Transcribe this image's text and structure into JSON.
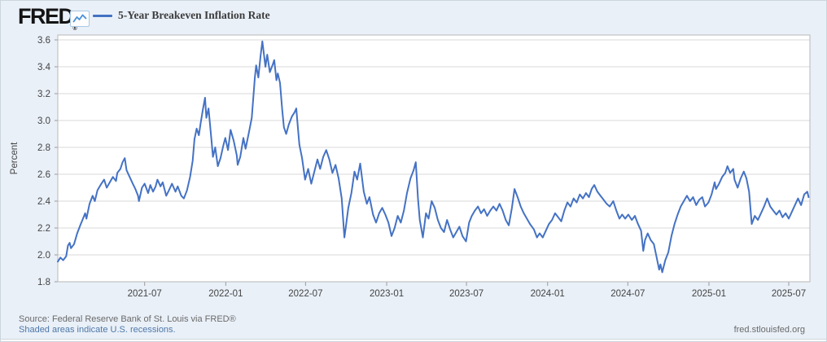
{
  "header": {
    "logo_text": "FRED",
    "registered_mark": "®",
    "logo_icon": "line-chart-icon",
    "legend": {
      "series_label": "5-Year Breakeven Inflation Rate",
      "line_color": "#4472c4"
    }
  },
  "footer": {
    "source_line": "Source: Federal Reserve Bank of St. Louis via FRED®",
    "recessions_note": "Shaded areas indicate U.S. recessions.",
    "site_link": "fred.stlouisfed.org"
  },
  "colors": {
    "figure_background": "#e9f0f8",
    "plot_background": "#ffffff",
    "gridline": "#d8d8d8",
    "plot_border": "#b9b9b9",
    "tick_mark": "#9a9a9a",
    "tick_text": "#434343",
    "series_line": "#4472c4",
    "link_blue": "#4e77a8"
  },
  "chart_data": {
    "type": "line",
    "title": "5-Year Breakeven Inflation Rate",
    "xlabel": "",
    "ylabel": "Percent",
    "ylim": [
      1.8,
      3.6
    ],
    "y_ticks": [
      1.8,
      2.0,
      2.2,
      2.4,
      2.6,
      2.8,
      3.0,
      3.2,
      3.4,
      3.6
    ],
    "x_ticks": [
      "2021-07",
      "2022-01",
      "2022-07",
      "2023-01",
      "2023-07",
      "2024-01",
      "2024-07",
      "2025-01",
      "2025-07"
    ],
    "x_range": [
      "2020-12-16",
      "2025-08-18"
    ],
    "grid": "horizontal-only",
    "legend_position": "top-left-header",
    "series": [
      {
        "name": "5-Year Breakeven Inflation Rate",
        "units": "Percent",
        "points": [
          [
            "2020-12-16",
            1.95
          ],
          [
            "2020-12-22",
            1.98
          ],
          [
            "2020-12-28",
            1.96
          ],
          [
            "2021-01-04",
            1.99
          ],
          [
            "2021-01-08",
            2.07
          ],
          [
            "2021-01-12",
            2.09
          ],
          [
            "2021-01-15",
            2.05
          ],
          [
            "2021-01-22",
            2.08
          ],
          [
            "2021-01-29",
            2.16
          ],
          [
            "2021-02-05",
            2.22
          ],
          [
            "2021-02-10",
            2.26
          ],
          [
            "2021-02-16",
            2.31
          ],
          [
            "2021-02-19",
            2.27
          ],
          [
            "2021-02-26",
            2.38
          ],
          [
            "2021-03-05",
            2.44
          ],
          [
            "2021-03-10",
            2.4
          ],
          [
            "2021-03-16",
            2.48
          ],
          [
            "2021-03-23",
            2.52
          ],
          [
            "2021-03-31",
            2.56
          ],
          [
            "2021-04-06",
            2.5
          ],
          [
            "2021-04-13",
            2.54
          ],
          [
            "2021-04-20",
            2.58
          ],
          [
            "2021-04-27",
            2.55
          ],
          [
            "2021-04-30",
            2.61
          ],
          [
            "2021-05-07",
            2.64
          ],
          [
            "2021-05-12",
            2.69
          ],
          [
            "2021-05-17",
            2.72
          ],
          [
            "2021-05-21",
            2.63
          ],
          [
            "2021-05-28",
            2.58
          ],
          [
            "2021-06-04",
            2.53
          ],
          [
            "2021-06-10",
            2.49
          ],
          [
            "2021-06-16",
            2.44
          ],
          [
            "2021-06-18",
            2.4
          ],
          [
            "2021-06-25",
            2.5
          ],
          [
            "2021-07-01",
            2.53
          ],
          [
            "2021-07-09",
            2.46
          ],
          [
            "2021-07-14",
            2.52
          ],
          [
            "2021-07-20",
            2.47
          ],
          [
            "2021-07-26",
            2.51
          ],
          [
            "2021-07-30",
            2.56
          ],
          [
            "2021-08-06",
            2.51
          ],
          [
            "2021-08-11",
            2.54
          ],
          [
            "2021-08-19",
            2.44
          ],
          [
            "2021-08-25",
            2.48
          ],
          [
            "2021-09-01",
            2.53
          ],
          [
            "2021-09-09",
            2.47
          ],
          [
            "2021-09-14",
            2.51
          ],
          [
            "2021-09-22",
            2.44
          ],
          [
            "2021-09-28",
            2.42
          ],
          [
            "2021-10-05",
            2.48
          ],
          [
            "2021-10-12",
            2.58
          ],
          [
            "2021-10-18",
            2.7
          ],
          [
            "2021-10-22",
            2.86
          ],
          [
            "2021-10-27",
            2.94
          ],
          [
            "2021-11-01",
            2.89
          ],
          [
            "2021-11-05",
            2.98
          ],
          [
            "2021-11-10",
            3.08
          ],
          [
            "2021-11-15",
            3.17
          ],
          [
            "2021-11-18",
            3.02
          ],
          [
            "2021-11-23",
            3.09
          ],
          [
            "2021-11-30",
            2.84
          ],
          [
            "2021-12-03",
            2.73
          ],
          [
            "2021-12-08",
            2.8
          ],
          [
            "2021-12-14",
            2.66
          ],
          [
            "2021-12-20",
            2.72
          ],
          [
            "2021-12-27",
            2.82
          ],
          [
            "2021-12-31",
            2.87
          ],
          [
            "2022-01-06",
            2.78
          ],
          [
            "2022-01-12",
            2.93
          ],
          [
            "2022-01-19",
            2.85
          ],
          [
            "2022-01-26",
            2.74
          ],
          [
            "2022-01-28",
            2.67
          ],
          [
            "2022-02-03",
            2.73
          ],
          [
            "2022-02-10",
            2.87
          ],
          [
            "2022-02-15",
            2.79
          ],
          [
            "2022-02-23",
            2.92
          ],
          [
            "2022-03-01",
            3.02
          ],
          [
            "2022-03-08",
            3.32
          ],
          [
            "2022-03-11",
            3.41
          ],
          [
            "2022-03-16",
            3.32
          ],
          [
            "2022-03-21",
            3.48
          ],
          [
            "2022-03-25",
            3.59
          ],
          [
            "2022-03-29",
            3.48
          ],
          [
            "2022-04-01",
            3.4
          ],
          [
            "2022-04-05",
            3.49
          ],
          [
            "2022-04-11",
            3.36
          ],
          [
            "2022-04-18",
            3.42
          ],
          [
            "2022-04-21",
            3.45
          ],
          [
            "2022-04-26",
            3.3
          ],
          [
            "2022-04-29",
            3.35
          ],
          [
            "2022-05-04",
            3.28
          ],
          [
            "2022-05-09",
            3.08
          ],
          [
            "2022-05-13",
            2.95
          ],
          [
            "2022-05-18",
            2.9
          ],
          [
            "2022-05-24",
            2.97
          ],
          [
            "2022-05-31",
            3.03
          ],
          [
            "2022-06-06",
            3.06
          ],
          [
            "2022-06-10",
            3.09
          ],
          [
            "2022-06-14",
            2.93
          ],
          [
            "2022-06-17",
            2.82
          ],
          [
            "2022-06-23",
            2.72
          ],
          [
            "2022-06-30",
            2.56
          ],
          [
            "2022-07-07",
            2.64
          ],
          [
            "2022-07-14",
            2.53
          ],
          [
            "2022-07-21",
            2.62
          ],
          [
            "2022-07-28",
            2.71
          ],
          [
            "2022-08-03",
            2.64
          ],
          [
            "2022-08-10",
            2.73
          ],
          [
            "2022-08-17",
            2.78
          ],
          [
            "2022-08-24",
            2.71
          ],
          [
            "2022-08-31",
            2.61
          ],
          [
            "2022-09-07",
            2.67
          ],
          [
            "2022-09-14",
            2.57
          ],
          [
            "2022-09-21",
            2.42
          ],
          [
            "2022-09-27",
            2.13
          ],
          [
            "2022-09-30",
            2.2
          ],
          [
            "2022-10-06",
            2.35
          ],
          [
            "2022-10-13",
            2.46
          ],
          [
            "2022-10-20",
            2.62
          ],
          [
            "2022-10-26",
            2.56
          ],
          [
            "2022-11-02",
            2.68
          ],
          [
            "2022-11-10",
            2.47
          ],
          [
            "2022-11-17",
            2.38
          ],
          [
            "2022-11-23",
            2.43
          ],
          [
            "2022-12-01",
            2.3
          ],
          [
            "2022-12-08",
            2.24
          ],
          [
            "2022-12-15",
            2.31
          ],
          [
            "2022-12-22",
            2.35
          ],
          [
            "2022-12-29",
            2.3
          ],
          [
            "2023-01-05",
            2.24
          ],
          [
            "2023-01-12",
            2.14
          ],
          [
            "2023-01-19",
            2.2
          ],
          [
            "2023-01-26",
            2.29
          ],
          [
            "2023-02-02",
            2.24
          ],
          [
            "2023-02-09",
            2.33
          ],
          [
            "2023-02-16",
            2.46
          ],
          [
            "2023-02-24",
            2.57
          ],
          [
            "2023-03-03",
            2.63
          ],
          [
            "2023-03-08",
            2.69
          ],
          [
            "2023-03-13",
            2.42
          ],
          [
            "2023-03-17",
            2.26
          ],
          [
            "2023-03-24",
            2.13
          ],
          [
            "2023-03-31",
            2.31
          ],
          [
            "2023-04-06",
            2.27
          ],
          [
            "2023-04-13",
            2.4
          ],
          [
            "2023-04-20",
            2.35
          ],
          [
            "2023-04-27",
            2.26
          ],
          [
            "2023-05-04",
            2.2
          ],
          [
            "2023-05-11",
            2.17
          ],
          [
            "2023-05-18",
            2.26
          ],
          [
            "2023-05-25",
            2.19
          ],
          [
            "2023-06-01",
            2.13
          ],
          [
            "2023-06-08",
            2.17
          ],
          [
            "2023-06-15",
            2.21
          ],
          [
            "2023-06-22",
            2.14
          ],
          [
            "2023-06-30",
            2.1
          ],
          [
            "2023-07-07",
            2.24
          ],
          [
            "2023-07-13",
            2.29
          ],
          [
            "2023-07-20",
            2.33
          ],
          [
            "2023-07-27",
            2.36
          ],
          [
            "2023-08-03",
            2.31
          ],
          [
            "2023-08-10",
            2.34
          ],
          [
            "2023-08-17",
            2.29
          ],
          [
            "2023-08-24",
            2.33
          ],
          [
            "2023-08-31",
            2.36
          ],
          [
            "2023-09-07",
            2.33
          ],
          [
            "2023-09-14",
            2.38
          ],
          [
            "2023-09-21",
            2.33
          ],
          [
            "2023-09-28",
            2.26
          ],
          [
            "2023-10-05",
            2.22
          ],
          [
            "2023-10-12",
            2.35
          ],
          [
            "2023-10-18",
            2.49
          ],
          [
            "2023-10-25",
            2.43
          ],
          [
            "2023-11-01",
            2.36
          ],
          [
            "2023-11-08",
            2.31
          ],
          [
            "2023-11-15",
            2.27
          ],
          [
            "2023-11-22",
            2.23
          ],
          [
            "2023-12-01",
            2.19
          ],
          [
            "2023-12-08",
            2.13
          ],
          [
            "2023-12-14",
            2.16
          ],
          [
            "2023-12-21",
            2.13
          ],
          [
            "2023-12-28",
            2.18
          ],
          [
            "2024-01-04",
            2.23
          ],
          [
            "2024-01-11",
            2.26
          ],
          [
            "2024-01-18",
            2.31
          ],
          [
            "2024-01-25",
            2.28
          ],
          [
            "2024-02-01",
            2.25
          ],
          [
            "2024-02-08",
            2.33
          ],
          [
            "2024-02-15",
            2.39
          ],
          [
            "2024-02-22",
            2.36
          ],
          [
            "2024-02-29",
            2.42
          ],
          [
            "2024-03-07",
            2.39
          ],
          [
            "2024-03-14",
            2.45
          ],
          [
            "2024-03-21",
            2.42
          ],
          [
            "2024-03-28",
            2.46
          ],
          [
            "2024-04-04",
            2.43
          ],
          [
            "2024-04-10",
            2.49
          ],
          [
            "2024-04-16",
            2.52
          ],
          [
            "2024-04-23",
            2.47
          ],
          [
            "2024-04-30",
            2.44
          ],
          [
            "2024-05-07",
            2.41
          ],
          [
            "2024-05-14",
            2.38
          ],
          [
            "2024-05-21",
            2.36
          ],
          [
            "2024-05-29",
            2.4
          ],
          [
            "2024-06-05",
            2.33
          ],
          [
            "2024-06-12",
            2.27
          ],
          [
            "2024-06-18",
            2.3
          ],
          [
            "2024-06-25",
            2.27
          ],
          [
            "2024-07-02",
            2.3
          ],
          [
            "2024-07-10",
            2.26
          ],
          [
            "2024-07-17",
            2.29
          ],
          [
            "2024-07-24",
            2.23
          ],
          [
            "2024-07-31",
            2.18
          ],
          [
            "2024-08-05",
            2.03
          ],
          [
            "2024-08-09",
            2.11
          ],
          [
            "2024-08-15",
            2.16
          ],
          [
            "2024-08-22",
            2.11
          ],
          [
            "2024-08-29",
            2.08
          ],
          [
            "2024-09-05",
            1.97
          ],
          [
            "2024-09-10",
            1.89
          ],
          [
            "2024-09-13",
            1.93
          ],
          [
            "2024-09-17",
            1.87
          ],
          [
            "2024-09-24",
            1.96
          ],
          [
            "2024-10-01",
            2.02
          ],
          [
            "2024-10-08",
            2.14
          ],
          [
            "2024-10-15",
            2.23
          ],
          [
            "2024-10-22",
            2.3
          ],
          [
            "2024-10-29",
            2.36
          ],
          [
            "2024-11-05",
            2.4
          ],
          [
            "2024-11-12",
            2.44
          ],
          [
            "2024-11-19",
            2.4
          ],
          [
            "2024-11-26",
            2.43
          ],
          [
            "2024-12-03",
            2.37
          ],
          [
            "2024-12-10",
            2.41
          ],
          [
            "2024-12-17",
            2.43
          ],
          [
            "2024-12-23",
            2.36
          ],
          [
            "2024-12-31",
            2.39
          ],
          [
            "2025-01-07",
            2.45
          ],
          [
            "2025-01-14",
            2.54
          ],
          [
            "2025-01-17",
            2.49
          ],
          [
            "2025-01-24",
            2.53
          ],
          [
            "2025-01-31",
            2.58
          ],
          [
            "2025-02-07",
            2.61
          ],
          [
            "2025-02-12",
            2.66
          ],
          [
            "2025-02-18",
            2.61
          ],
          [
            "2025-02-25",
            2.64
          ],
          [
            "2025-02-28",
            2.56
          ],
          [
            "2025-03-07",
            2.5
          ],
          [
            "2025-03-14",
            2.57
          ],
          [
            "2025-03-21",
            2.62
          ],
          [
            "2025-03-27",
            2.57
          ],
          [
            "2025-04-02",
            2.47
          ],
          [
            "2025-04-08",
            2.23
          ],
          [
            "2025-04-15",
            2.29
          ],
          [
            "2025-04-22",
            2.26
          ],
          [
            "2025-04-29",
            2.31
          ],
          [
            "2025-05-06",
            2.36
          ],
          [
            "2025-05-13",
            2.42
          ],
          [
            "2025-05-20",
            2.36
          ],
          [
            "2025-05-27",
            2.33
          ],
          [
            "2025-06-03",
            2.3
          ],
          [
            "2025-06-10",
            2.33
          ],
          [
            "2025-06-17",
            2.28
          ],
          [
            "2025-06-24",
            2.31
          ],
          [
            "2025-07-01",
            2.27
          ],
          [
            "2025-07-08",
            2.32
          ],
          [
            "2025-07-15",
            2.37
          ],
          [
            "2025-07-22",
            2.42
          ],
          [
            "2025-07-29",
            2.37
          ],
          [
            "2025-08-05",
            2.45
          ],
          [
            "2025-08-12",
            2.47
          ],
          [
            "2025-08-15",
            2.43
          ]
        ]
      }
    ]
  }
}
